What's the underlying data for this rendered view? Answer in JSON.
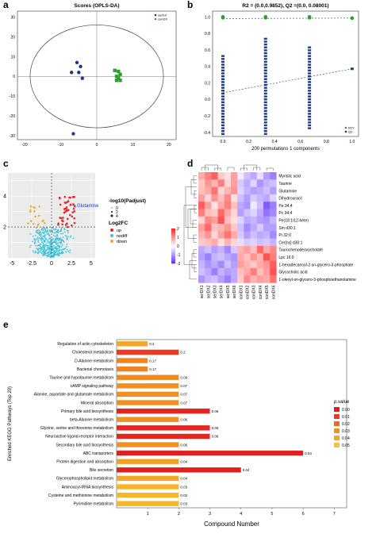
{
  "chart_data": [
    {
      "panel": "a",
      "type": "scatter",
      "title": "Scores (OPLS-DA)",
      "legend": {
        "position": "top-right",
        "items": [
          {
            "label": "serDX",
            "color": "#1a3a8a"
          },
          {
            "label": "conDX",
            "color": "#2ca02c"
          }
        ]
      },
      "xticks": [
        "-20",
        "-10",
        "0",
        "10",
        "20"
      ],
      "yticks": [
        "30",
        "20",
        "10",
        "0",
        "-10",
        "-20",
        "-30"
      ],
      "xlim": [
        -22,
        22
      ],
      "ylim": [
        -32,
        33
      ],
      "series": [
        {
          "name": "serDX",
          "color": "#1a3a8a",
          "points": [
            [
              -5.5,
              7
            ],
            [
              -4.5,
              5
            ],
            [
              -7,
              2
            ],
            [
              -5,
              2
            ],
            [
              -4,
              -1
            ],
            [
              -6.5,
              -29
            ]
          ]
        },
        {
          "name": "conDX",
          "color": "#2ca02c",
          "points": [
            [
              5,
              3
            ],
            [
              6,
              2.5
            ],
            [
              6.5,
              1
            ],
            [
              5.5,
              0
            ],
            [
              6,
              -1
            ],
            [
              6.5,
              -2
            ],
            [
              5.5,
              -2
            ]
          ]
        }
      ],
      "ellipse": {
        "cx": 0,
        "cy": 0,
        "rx": 18.5,
        "ry": 26
      }
    },
    {
      "panel": "b",
      "type": "scatter",
      "title": "R2 = (0.0,0.9852), Q2 =(0.0, 0.08001)",
      "xlabel": "200 permutations 1 components",
      "legend": {
        "position": "bottom-right",
        "items": [
          {
            "label": "R2Y",
            "color": "#2ca02c"
          },
          {
            "label": "Q2",
            "color": "#1a3a8a"
          }
        ]
      },
      "xticks": [
        "0.0",
        "0.2",
        "0.4",
        "0.6",
        "0.8",
        "1.0"
      ],
      "yticks": [
        "1.0",
        "0.8",
        "0.6",
        "0.4",
        "0.2",
        "0.0",
        "-0.2",
        "-0.4"
      ],
      "xlim": [
        -0.08,
        1.05
      ],
      "ylim": [
        -0.45,
        1.07
      ],
      "r2_points": [
        [
          0.0,
          1.0
        ],
        [
          0.0,
          0.99
        ],
        [
          0.33,
          1.0
        ],
        [
          0.33,
          0.99
        ],
        [
          0.67,
          1.0
        ],
        [
          0.67,
          0.99
        ],
        [
          1.0,
          0.9852
        ]
      ],
      "q2_columns": [
        {
          "x": 0.0,
          "ymin": -0.42,
          "ymax": 0.55
        },
        {
          "x": 0.33,
          "ymin": -0.42,
          "ymax": 0.75
        },
        {
          "x": 0.67,
          "ymin": -0.35,
          "ymax": 0.65
        }
      ],
      "q2_end": [
        1.0,
        0.37
      ],
      "r2_line": [
        [
          0.0,
          0.98
        ],
        [
          1.0,
          0.9852
        ]
      ],
      "q2_line": [
        [
          0.0,
          0.08
        ],
        [
          1.0,
          0.37
        ]
      ]
    },
    {
      "panel": "c",
      "type": "scatter",
      "legend_title": "-log10(Padjust)",
      "size_legend": [
        "0",
        "2",
        "4"
      ],
      "color_legend_title": "Log2FC",
      "color_legend": [
        {
          "label": "up",
          "color": "#e6262b"
        },
        {
          "label": "nodiff",
          "color": "#39c4de"
        },
        {
          "label": "down",
          "color": "#f5a623"
        }
      ],
      "xticks": [
        "-5",
        "-2.5",
        "0",
        "2.5",
        "5"
      ],
      "yticks": [
        "4",
        "2"
      ],
      "xlim": [
        -5.5,
        5.5
      ],
      "ylim": [
        0,
        5.5
      ],
      "annotation": "Glutamine",
      "annotation_point": [
        2.6,
        3.4
      ]
    },
    {
      "panel": "d",
      "type": "heatmap",
      "rows": [
        "Myristic acid",
        "Taurine",
        "Glutamine",
        "Dihydrouracil",
        "Pe 34:4",
        "Pc 34:4",
        "Pe(18:1/12-hete)",
        "Sm d30:1",
        "Pi 32:0",
        "Cer[ns] d30:1",
        "Taurochenodeoxycholate",
        "Lpc 16:0",
        "1-hexadecanoyl-2-sn-glycero-3-phosphate",
        "Glycocholic acid",
        "1-oleoyl-sn-glycero-3-phosphoethanolamine"
      ],
      "columns": [
        "serDX1",
        "serDX2",
        "serDX3",
        "serDX4",
        "serDX5",
        "serDX6",
        "conDX1",
        "conDX2",
        "conDX3",
        "conDX4",
        "conDX5",
        "conDX6"
      ],
      "scale_ticks": [
        "2",
        "1",
        "0",
        "-1",
        "-2"
      ],
      "values": [
        [
          0.8,
          1.2,
          1.5,
          0.5,
          0.3,
          0.9,
          -0.2,
          -0.6,
          -0.8,
          -0.3,
          -0.9,
          -1.2
        ],
        [
          0.5,
          1.0,
          0.7,
          1.2,
          0.4,
          0.9,
          -0.5,
          -0.8,
          -0.4,
          -1.0,
          -0.7,
          -0.6
        ],
        [
          0.6,
          0.8,
          1.3,
          0.4,
          0.7,
          1.0,
          -0.4,
          -0.7,
          -0.9,
          -0.8,
          -0.6,
          -0.9
        ],
        [
          0.9,
          0.4,
          1.0,
          0.6,
          1.1,
          0.3,
          -0.6,
          -0.9,
          -0.5,
          -0.7,
          -0.8,
          -0.4
        ],
        [
          1.5,
          0.9,
          0.3,
          0.8,
          1.2,
          0.6,
          -0.8,
          -1.0,
          -0.2,
          -0.6,
          -1.5,
          -1.2
        ],
        [
          1.2,
          0.6,
          0.5,
          1.4,
          0.8,
          0.4,
          -0.9,
          -0.6,
          -0.4,
          -0.8,
          -1.3,
          -1.1
        ],
        [
          0.4,
          1.1,
          0.9,
          1.6,
          0.6,
          0.3,
          -0.4,
          -0.8,
          -0.7,
          -0.9,
          -1.0,
          -0.7
        ],
        [
          0.9,
          1.4,
          0.6,
          0.7,
          1.0,
          0.5,
          -0.6,
          -1.1,
          -0.8,
          -0.5,
          -0.9,
          -0.9
        ],
        [
          0.7,
          1.0,
          0.4,
          0.9,
          1.3,
          0.8,
          -0.5,
          -0.9,
          -0.6,
          -0.8,
          -0.7,
          -1.1
        ],
        [
          0.5,
          0.6,
          0.8,
          0.3,
          0.7,
          0.4,
          -0.3,
          -0.5,
          -0.4,
          -0.6,
          -0.5,
          -0.7
        ],
        [
          -0.8,
          -0.6,
          -0.9,
          -0.7,
          -1.1,
          -0.5,
          0.7,
          0.9,
          0.6,
          1.4,
          0.8,
          1.1
        ],
        [
          -0.9,
          -1.2,
          -0.7,
          -0.6,
          -0.8,
          -1.0,
          0.8,
          0.6,
          1.0,
          0.7,
          1.6,
          1.2
        ],
        [
          -0.7,
          -1.0,
          -0.8,
          -1.1,
          -0.6,
          -0.9,
          0.9,
          0.7,
          0.5,
          0.8,
          1.0,
          1.5
        ],
        [
          -0.6,
          -0.8,
          -1.2,
          -0.7,
          -0.9,
          -0.8,
          0.6,
          0.8,
          1.2,
          0.6,
          0.9,
          1.6
        ],
        [
          -1.0,
          -0.7,
          -0.6,
          -0.9,
          -1.2,
          -0.8,
          0.5,
          1.1,
          0.7,
          0.9,
          0.8,
          1.3
        ]
      ]
    },
    {
      "panel": "e",
      "type": "bar",
      "orientation": "horizontal",
      "xlabel": "Compound Number",
      "ylabel": "Enriched KEGG Pathways (Top 20)",
      "legend_title": "p.value",
      "legend_ticks": [
        "0.00",
        "0.01",
        "0.02",
        "0.03",
        "0.04",
        "0.05"
      ],
      "xticks": [
        "1",
        "2",
        "3",
        "4",
        "5",
        "6",
        "7"
      ],
      "xlim": [
        0,
        7.4
      ],
      "categories": [
        "Regulation of actin cytoskeleton",
        "Cholesterol metabolism",
        "D-Alanine metabolism",
        "Bacterial chemotaxis",
        "Taurine and hypotaurine metabolism",
        "cAMP signaling pathway",
        "Alanine, aspartate and glutamate metabolism",
        "Mineral absorption",
        "Primary bile acid biosynthesis",
        "beta-Alanine metabolism",
        "Glycine, serine and threonine metabolism",
        "Neuroactive ligand-receptor interaction",
        "Secondary bile acid biosynthesis",
        "ABC transporters",
        "Protein digestion and absorption",
        "Bile secretion",
        "Glycerophospholipid metabolism",
        "Aminoacyl-tRNA biosynthesis",
        "Cysteine and methionine metabolism",
        "Pyrimidine metabolism"
      ],
      "values": [
        1,
        2,
        1,
        1,
        2,
        2,
        2,
        2,
        3,
        2,
        3,
        3,
        2,
        6,
        2,
        4,
        2,
        2,
        2,
        2
      ],
      "pvalues": [
        "0.2",
        "0.2",
        "0.17",
        "0.17",
        "0.09",
        "0.07",
        "0.07",
        "0.07",
        "0.06",
        "0.06",
        "0.06",
        "0.06",
        "0.06",
        "0.04",
        "0.04",
        "0.04",
        "0.04",
        "0.03",
        "0.03",
        "0.03"
      ],
      "colors": [
        "#f5a623",
        "#ec3a22",
        "#f0851f",
        "#f0851f",
        "#f08a20",
        "#f0901e",
        "#f0901e",
        "#f0901e",
        "#e52520",
        "#f0901e",
        "#e52520",
        "#e52520",
        "#f0901e",
        "#e0201e",
        "#f2a020",
        "#e0201e",
        "#f5a623",
        "#f6b626",
        "#f6b626",
        "#f6b626"
      ]
    }
  ],
  "panel_labels": [
    "a",
    "b",
    "c",
    "d",
    "e"
  ]
}
